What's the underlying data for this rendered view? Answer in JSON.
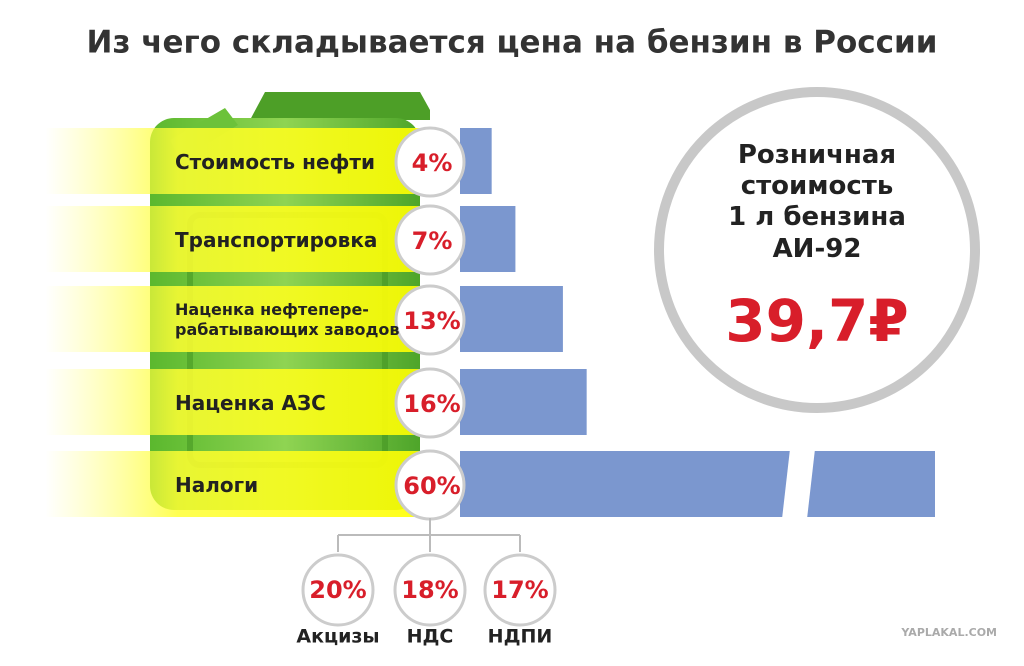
{
  "chart_data": {
    "type": "bar",
    "title": "Из чего складывается цена на бензин в России",
    "categories": [
      "Стоимость нефти",
      "Транспортировка",
      "Наценка нефтепере-\nрабатывающих заводов",
      "Наценка АЗС",
      "Налоги"
    ],
    "values": [
      4,
      7,
      13,
      16,
      60
    ],
    "value_labels": [
      "4%",
      "7%",
      "13%",
      "16%",
      "60%"
    ],
    "color": "#7b97cf",
    "breakdown": {
      "categories": [
        "Акцизы",
        "НДС",
        "НДПИ"
      ],
      "values": [
        20,
        18,
        17
      ],
      "value_labels": [
        "20%",
        "18%",
        "17%"
      ]
    },
    "price": {
      "label": "Розничная\nстоимость\n1 л бензина\nАИ-92",
      "value": 39.7,
      "value_label": "39,7₽"
    },
    "watermark": "YAPLAKAL.COM"
  }
}
